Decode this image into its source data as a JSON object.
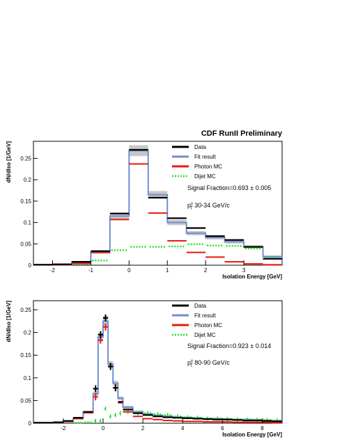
{
  "header": {
    "title": "CDF RunII Preliminary"
  },
  "colors": {
    "data": "#000000",
    "fit": "#6f8fd1",
    "photon": "#e8180e",
    "dijet": "#22e022",
    "band": "#bdbdbd"
  },
  "chart_data": [
    {
      "type": "histogram",
      "xlabel": "Isolation Energy [GeV]",
      "ylabel": "dN/dIso [1/GeV]",
      "xlim": [
        -2.5,
        4.0
      ],
      "ylim": [
        0,
        0.29
      ],
      "xticks": [
        "-2",
        "-1",
        "0",
        "1",
        "2",
        "3"
      ],
      "xtick_values": [
        -2,
        -1,
        0,
        1,
        2,
        3
      ],
      "yticks": [
        "0",
        "0.05",
        "0.1",
        "0.15",
        "0.2",
        "0.25"
      ],
      "ytick_values": [
        0,
        0.05,
        0.1,
        0.15,
        0.2,
        0.25
      ],
      "legend": [
        "Data",
        "Fit result",
        "Photon MC",
        "Dijet MC"
      ],
      "legend_position": "top-right",
      "annotations": {
        "signal_fraction": "Signal Fraction=0.693 ± 0.005",
        "pt_label": "p",
        "pt_sup": "γ",
        "pt_sub": "T",
        "pt_range": "30-34 GeV/c"
      },
      "bin_edges": [
        -2.5,
        -2.0,
        -1.5,
        -1.0,
        -0.5,
        0.0,
        0.5,
        1.0,
        1.5,
        2.0,
        2.5,
        3.0,
        3.5,
        4.0
      ],
      "series": [
        {
          "name": "Data",
          "values": [
            0.001,
            0.002,
            0.008,
            0.033,
            0.121,
            0.27,
            0.158,
            0.11,
            0.087,
            0.068,
            0.059,
            0.043,
            0.015
          ]
        },
        {
          "name": "Fit result",
          "values": [
            0.001,
            0.002,
            0.007,
            0.03,
            0.115,
            0.268,
            0.165,
            0.1,
            0.075,
            0.065,
            0.055,
            0.043,
            0.02
          ]
        },
        {
          "name": "Photon MC",
          "values": [
            0.001,
            0.001,
            0.004,
            0.03,
            0.107,
            0.237,
            0.122,
            0.057,
            0.03,
            0.019,
            0.008,
            0.003,
            0.001
          ]
        },
        {
          "name": "Dijet MC",
          "values": [
            0,
            0.001,
            0.003,
            0.011,
            0.035,
            0.043,
            0.043,
            0.044,
            0.049,
            0.046,
            0.045,
            0.039,
            0.016
          ]
        }
      ]
    },
    {
      "type": "histogram",
      "xlabel": "Isolation Energy [GeV]",
      "ylabel": "dN/dIso [1/GeV]",
      "xlim": [
        -3.5,
        9.0
      ],
      "ylim": [
        0,
        0.27
      ],
      "xticks": [
        "-2",
        "0",
        "2",
        "4",
        "6",
        "8"
      ],
      "xtick_values": [
        -2,
        0,
        2,
        4,
        6,
        8
      ],
      "yticks": [
        "0",
        "0.05",
        "0.1",
        "0.15",
        "0.2",
        "0.25"
      ],
      "ytick_values": [
        0,
        0.05,
        0.1,
        0.15,
        0.2,
        0.25
      ],
      "legend": [
        "Data",
        "Fit result",
        "Photon MC",
        "Dijet MC"
      ],
      "legend_position": "top-right",
      "annotations": {
        "signal_fraction": "Signal Fraction=0.923 ± 0.014",
        "pt_label": "p",
        "pt_sup": "γ",
        "pt_sub": "T",
        "pt_range": "80-90 GeV/c"
      },
      "bin_edges": [
        -3.5,
        -3.0,
        -2.5,
        -2.0,
        -1.5,
        -1.0,
        -0.5,
        -0.25,
        0.0,
        0.25,
        0.5,
        0.75,
        1.0,
        1.5,
        2.0,
        2.5,
        3.0,
        3.5,
        4.0,
        4.5,
        5.0,
        5.5,
        6.0,
        6.5,
        7.0,
        7.5,
        8.0,
        8.5,
        9.0
      ],
      "series": [
        {
          "name": "Data",
          "values": [
            0.001,
            0.001,
            0.002,
            0.005,
            0.012,
            0.025,
            0.076,
            0.195,
            0.232,
            0.125,
            0.078,
            0.047,
            0.03,
            0.022,
            0.018,
            0.015,
            0.013,
            0.012,
            0.011,
            0.01,
            0.009,
            0.008,
            0.008,
            0.007,
            0.006,
            0.006,
            0.005,
            0.004
          ]
        },
        {
          "name": "Fit result",
          "values": [
            0.001,
            0.001,
            0.002,
            0.004,
            0.011,
            0.024,
            0.065,
            0.19,
            0.225,
            0.13,
            0.088,
            0.055,
            0.035,
            0.025,
            0.02,
            0.017,
            0.015,
            0.013,
            0.012,
            0.011,
            0.01,
            0.01,
            0.009,
            0.008,
            0.008,
            0.007,
            0.006,
            0.005
          ]
        },
        {
          "name": "Photon MC",
          "values": [
            0.001,
            0.001,
            0.002,
            0.004,
            0.01,
            0.023,
            0.058,
            0.183,
            0.212,
            0.125,
            0.078,
            0.045,
            0.025,
            0.015,
            0.01,
            0.008,
            0.006,
            0.005,
            0.004,
            0.004,
            0.003,
            0.003,
            0.003,
            0.002,
            0.002,
            0.002,
            0.002,
            0.001
          ]
        },
        {
          "name": "Dijet MC",
          "values": [
            0,
            0,
            0,
            0,
            0.001,
            0.002,
            0.005,
            0.005,
            0.032,
            0.015,
            0.018,
            0.022,
            0.025,
            0.022,
            0.022,
            0.02,
            0.018,
            0.015,
            0.013,
            0.012,
            0.01,
            0.01,
            0.009,
            0.008,
            0.008,
            0.008,
            0.007,
            0.006
          ]
        }
      ]
    }
  ]
}
